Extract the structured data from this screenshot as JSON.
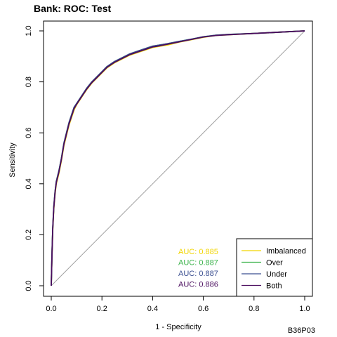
{
  "chart_data": {
    "type": "line",
    "title": "Bank: ROC: Test",
    "xlabel": "1 - Specificity",
    "ylabel": "Sensitivity",
    "xlim": [
      0,
      1
    ],
    "ylim": [
      0,
      1
    ],
    "x_ticks": [
      "0.0",
      "0.2",
      "0.4",
      "0.6",
      "0.8",
      "1.0"
    ],
    "y_ticks": [
      "0.0",
      "0.2",
      "0.4",
      "0.6",
      "0.8",
      "1.0"
    ],
    "grid": false,
    "legend_position": "bottom-right",
    "reference_line": {
      "from": [
        0,
        0
      ],
      "to": [
        1,
        1
      ],
      "color": "#a0a0a0"
    },
    "series": [
      {
        "name": "Imbalanced",
        "color": "#f2d500",
        "auc_label": "AUC: 0.885",
        "x": [
          0,
          0.003,
          0.006,
          0.01,
          0.015,
          0.02,
          0.03,
          0.04,
          0.05,
          0.06,
          0.07,
          0.08,
          0.09,
          0.1,
          0.12,
          0.14,
          0.16,
          0.18,
          0.2,
          0.22,
          0.25,
          0.28,
          0.31,
          0.34,
          0.37,
          0.4,
          0.43,
          0.46,
          0.5,
          0.55,
          0.6,
          0.65,
          0.7,
          0.8,
          0.9,
          1.0
        ],
        "y": [
          0,
          0.12,
          0.22,
          0.3,
          0.36,
          0.4,
          0.44,
          0.49,
          0.55,
          0.59,
          0.63,
          0.66,
          0.69,
          0.71,
          0.74,
          0.77,
          0.795,
          0.815,
          0.835,
          0.855,
          0.875,
          0.89,
          0.905,
          0.915,
          0.925,
          0.935,
          0.94,
          0.945,
          0.955,
          0.965,
          0.975,
          0.982,
          0.985,
          0.99,
          0.995,
          1.0
        ]
      },
      {
        "name": "Over",
        "color": "#3ab24a",
        "auc_label": "AUC: 0.887",
        "x": [
          0,
          0.003,
          0.006,
          0.01,
          0.015,
          0.02,
          0.03,
          0.04,
          0.05,
          0.06,
          0.07,
          0.08,
          0.09,
          0.1,
          0.12,
          0.14,
          0.16,
          0.18,
          0.2,
          0.22,
          0.25,
          0.28,
          0.31,
          0.34,
          0.37,
          0.4,
          0.43,
          0.46,
          0.5,
          0.55,
          0.6,
          0.65,
          0.7,
          0.8,
          0.9,
          1.0
        ],
        "y": [
          0,
          0.13,
          0.23,
          0.31,
          0.37,
          0.41,
          0.45,
          0.5,
          0.56,
          0.6,
          0.64,
          0.67,
          0.7,
          0.715,
          0.745,
          0.775,
          0.8,
          0.82,
          0.84,
          0.86,
          0.88,
          0.895,
          0.91,
          0.92,
          0.93,
          0.94,
          0.945,
          0.95,
          0.958,
          0.967,
          0.977,
          0.983,
          0.986,
          0.99,
          0.995,
          1.0
        ]
      },
      {
        "name": "Under",
        "color": "#3b4f91",
        "auc_label": "AUC: 0.887",
        "x": [
          0,
          0.003,
          0.006,
          0.01,
          0.015,
          0.02,
          0.03,
          0.04,
          0.05,
          0.06,
          0.07,
          0.08,
          0.09,
          0.1,
          0.12,
          0.14,
          0.16,
          0.18,
          0.2,
          0.22,
          0.25,
          0.28,
          0.31,
          0.34,
          0.37,
          0.4,
          0.43,
          0.46,
          0.5,
          0.55,
          0.6,
          0.65,
          0.7,
          0.8,
          0.9,
          1.0
        ],
        "y": [
          0,
          0.13,
          0.23,
          0.31,
          0.37,
          0.41,
          0.45,
          0.5,
          0.56,
          0.6,
          0.64,
          0.67,
          0.7,
          0.715,
          0.745,
          0.775,
          0.8,
          0.82,
          0.84,
          0.86,
          0.88,
          0.895,
          0.91,
          0.92,
          0.93,
          0.94,
          0.945,
          0.95,
          0.958,
          0.967,
          0.977,
          0.983,
          0.986,
          0.99,
          0.995,
          1.0
        ]
      },
      {
        "name": "Both",
        "color": "#4a0d5e",
        "auc_label": "AUC: 0.886",
        "x": [
          0,
          0.003,
          0.006,
          0.01,
          0.015,
          0.02,
          0.03,
          0.04,
          0.05,
          0.06,
          0.07,
          0.08,
          0.09,
          0.1,
          0.12,
          0.14,
          0.16,
          0.18,
          0.2,
          0.22,
          0.25,
          0.28,
          0.31,
          0.34,
          0.37,
          0.4,
          0.43,
          0.46,
          0.5,
          0.55,
          0.6,
          0.65,
          0.7,
          0.8,
          0.9,
          1.0
        ],
        "y": [
          0,
          0.125,
          0.225,
          0.305,
          0.365,
          0.405,
          0.445,
          0.495,
          0.555,
          0.595,
          0.635,
          0.665,
          0.695,
          0.712,
          0.742,
          0.772,
          0.797,
          0.817,
          0.837,
          0.857,
          0.877,
          0.892,
          0.907,
          0.917,
          0.927,
          0.937,
          0.942,
          0.948,
          0.956,
          0.966,
          0.976,
          0.982,
          0.985,
          0.99,
          0.995,
          1.0
        ]
      }
    ]
  },
  "footer_code": "B36P03"
}
